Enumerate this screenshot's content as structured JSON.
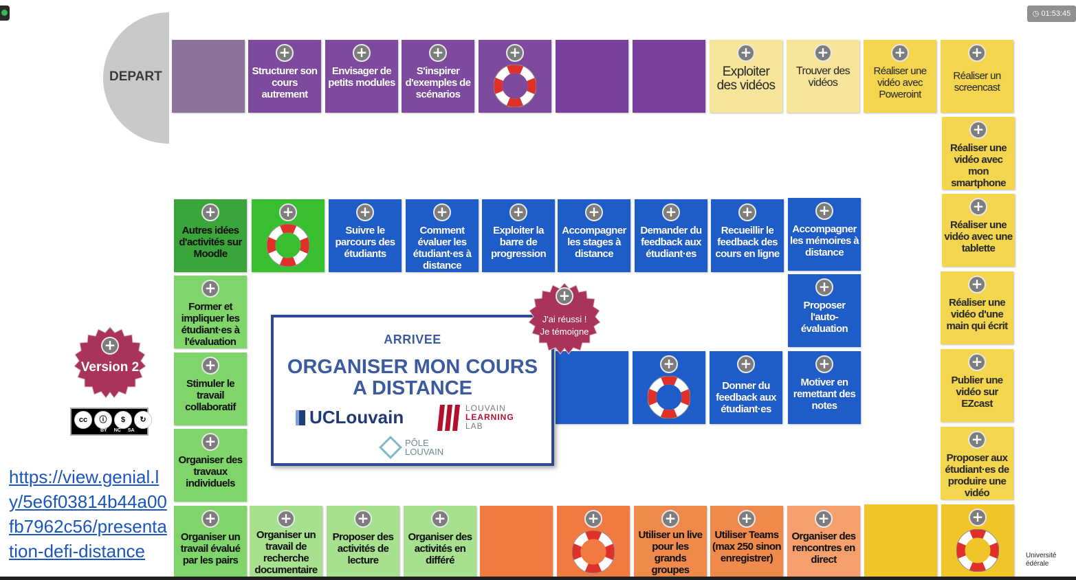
{
  "board": {
    "depart_label": "DEPART",
    "arrivee": {
      "label": "ARRIVEE",
      "title_line1": "ORGANISER MON COURS",
      "title_line2": "A DISTANCE",
      "uclouvain": "UCLouvain",
      "lll_line1": "LOUVAIN",
      "lll_line2": "LEARNING",
      "lll_line3": "LAB",
      "pole_line1": "PÔLE",
      "pole_line2": "LOUVAIN"
    },
    "badge_temoigne": {
      "line1": "J'ai réussi !",
      "line2": "Je témoigne"
    },
    "badge_version": "Version 2",
    "plus_symbol": "+",
    "tiles": {
      "structurer": "Structurer son cours autrement",
      "envisager": "Envisager de petits modules",
      "inspirer": "S'inspirer d'exemples de scénarios",
      "exploiter_videos": "Exploiter des vidéos",
      "trouver_videos": "Trouver des vidéos",
      "video_powerpoint": "Réaliser une vidéo avec Poweroint",
      "screencast": "Réaliser un screencast",
      "smartphone": "Réaliser une vidéo avec mon smartphone",
      "tablette": "Réaliser une vidéo avec une tablette",
      "main_ecrit": "Réaliser une vidéo d'une main qui écrit",
      "ezcast": "Publier une vidéo sur EZcast",
      "produire_video": "Proposer aux étudiant·es de produire une vidéo",
      "moodle": "Autres idées d'activités sur Moodle",
      "suivre_parcours": "Suivre le parcours des étudiants",
      "evaluer": "Comment évaluer les étudiant·es à distance",
      "barre_progression": "Exploiter la barre de progression",
      "stages": "Accompagner les stages à distance",
      "feedback_etudiants": "Demander du feedback aux étudiant·es",
      "feedback_cours": "Recueillir le feedback des cours en ligne",
      "memoires": "Accompagner les mémoires à distance",
      "auto_evaluation": "Proposer l'auto-évaluation",
      "donner_feedback": "Donner du feedback aux étudiant·es",
      "motiver": "Motiver en remettant des notes",
      "former_impliquer": "Former et impliquer les étudiant·es à l'évaluation",
      "collaboratif": "Stimuler le travail collaboratif",
      "individuels": "Organiser des travaux individuels",
      "evalue_pairs": "Organiser un travail évalué par les pairs",
      "recherche_doc": "Organiser un travail de recherche documentaire",
      "lecture": "Proposer des activités de lecture",
      "differe": "Organiser des activités en différé",
      "live": "Utiliser un live pour les grands groupes",
      "teams": "Utiliser Teams (max 250 sinon enregistrer)",
      "rencontres": "Organiser des rencontres en direct"
    }
  },
  "license": {
    "tags": [
      "BY",
      "NC",
      "SA"
    ],
    "icons": [
      "cc-icon",
      "by-icon",
      "nc-icon",
      "sa-icon"
    ]
  },
  "link": "https://view.genial.ly/5e6f03814b44a00fb7962c56/presentation-defi-distance",
  "timer": "01:53:45",
  "corner_text": {
    "line1": "Université",
    "line2": "édérale"
  },
  "colors": {
    "purple": "#7d4a9e",
    "yellow": "#f3d54e",
    "green": "#7fd56a",
    "blue": "#1e5cc8",
    "orange": "#f07a40",
    "seal": "#a8345c",
    "border_blue": "#2a4a8c"
  }
}
